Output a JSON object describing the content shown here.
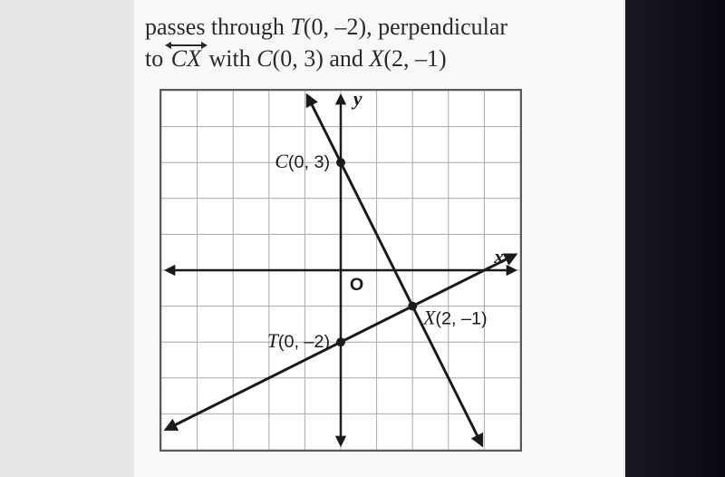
{
  "problem": {
    "line1_pre": "passes through ",
    "pointT_name": "T",
    "pointT_coords": "(0, –2)",
    "line1_mid": ", perpendicular",
    "line2_pre": "to ",
    "ray_label": "CX",
    "line2_mid": " with ",
    "pointC_name": "C",
    "pointC_coords": "(0, 3)",
    "line2_and": " and ",
    "pointX_name": "X",
    "pointX_coords": "(2, –1)"
  },
  "graph": {
    "type": "coordinate-grid",
    "grid_min": -5,
    "grid_max": 5,
    "grid_color": "#a8a8a8",
    "axis_color": "#1a1a1a",
    "background_color": "#ffffff",
    "border_color": "#5a5a5a",
    "points": {
      "C": {
        "x": 0,
        "y": 3,
        "label": "C(0, 3)"
      },
      "T": {
        "x": 0,
        "y": -2,
        "label": "T(0, –2)"
      },
      "X": {
        "x": 2,
        "y": -1,
        "label": "X(2, –1)"
      }
    },
    "lines": [
      {
        "desc": "CX line y=-2x+3",
        "slope": -2,
        "intercept": 3,
        "color": "#1a1a1a",
        "width": 3
      },
      {
        "desc": "perpendicular through T y=0.5x-2",
        "slope": 0.5,
        "intercept": -2,
        "color": "#1a1a1a",
        "width": 3
      }
    ],
    "axis_labels": {
      "x": "x",
      "y": "y",
      "origin": "O"
    },
    "point_radius": 5,
    "label_fontsize": 22
  }
}
